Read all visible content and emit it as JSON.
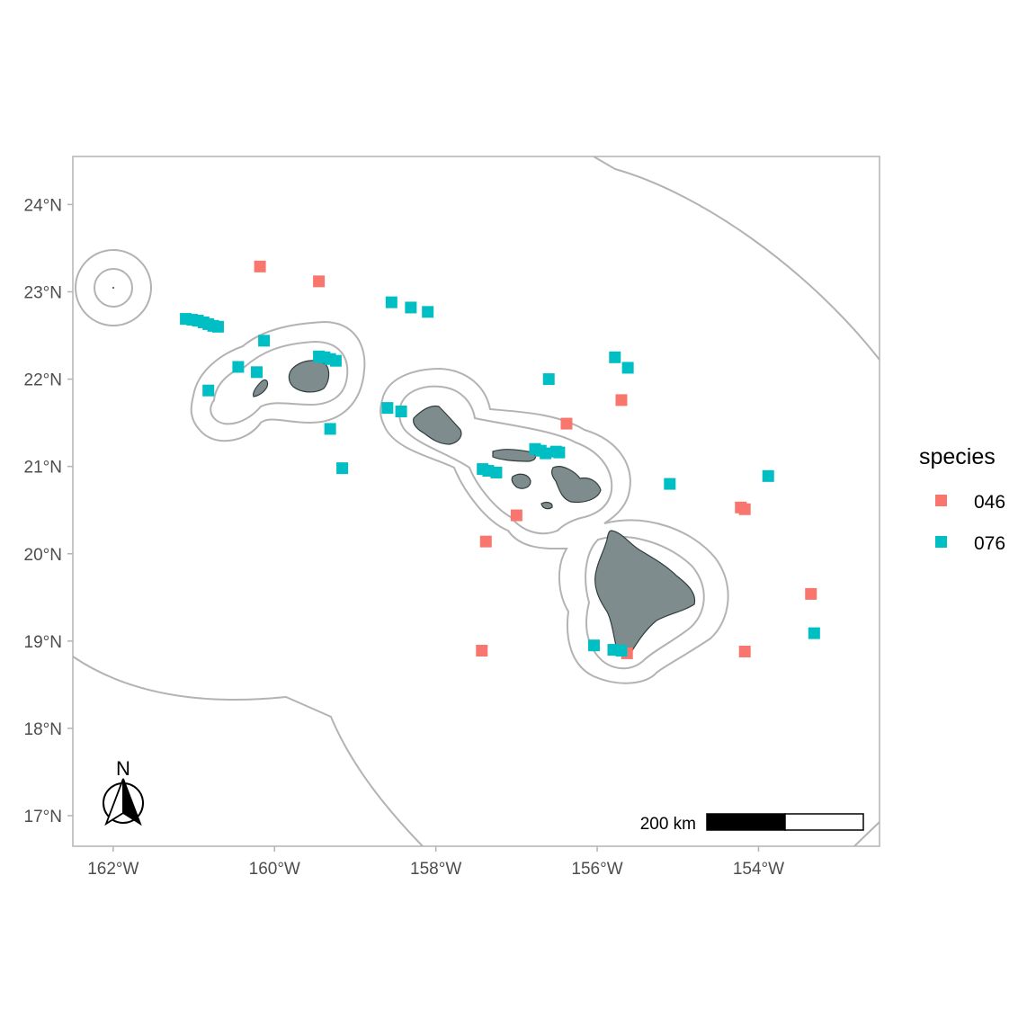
{
  "chart_data": {
    "type": "scatter",
    "subtype": "map",
    "region": "Hawaiian Islands",
    "xlim": [
      -162.5,
      -152.5
    ],
    "ylim": [
      16.65,
      24.55
    ],
    "x_ticks": [
      {
        "value": -162,
        "label": "162°W"
      },
      {
        "value": -160,
        "label": "160°W"
      },
      {
        "value": -158,
        "label": "158°W"
      },
      {
        "value": -156,
        "label": "156°W"
      },
      {
        "value": -154,
        "label": "154°W"
      }
    ],
    "y_ticks": [
      {
        "value": 17,
        "label": "17°N"
      },
      {
        "value": 18,
        "label": "18°N"
      },
      {
        "value": 19,
        "label": "19°N"
      },
      {
        "value": 20,
        "label": "20°N"
      },
      {
        "value": 21,
        "label": "21°N"
      },
      {
        "value": 22,
        "label": "22°N"
      },
      {
        "value": 23,
        "label": "23°N"
      },
      {
        "value": 24,
        "label": "24°N"
      }
    ],
    "legend": {
      "title": "species",
      "position": "right",
      "entries": [
        {
          "label": "046",
          "color": "#F8766D"
        },
        {
          "label": "076",
          "color": "#00BFC4"
        }
      ]
    },
    "series": [
      {
        "name": "046",
        "color": "#F8766D",
        "points": [
          [
            -160.18,
            23.29
          ],
          [
            -159.45,
            23.12
          ],
          [
            -156.38,
            21.49
          ],
          [
            -155.7,
            21.76
          ],
          [
            -157.0,
            20.44
          ],
          [
            -157.38,
            20.14
          ],
          [
            -154.22,
            20.53
          ],
          [
            -154.17,
            20.51
          ],
          [
            -153.35,
            19.54
          ],
          [
            -157.43,
            18.89
          ],
          [
            -155.63,
            18.86
          ],
          [
            -154.17,
            18.88
          ]
        ]
      },
      {
        "name": "076",
        "color": "#00BFC4",
        "points": [
          [
            -161.1,
            22.69
          ],
          [
            -161.02,
            22.68
          ],
          [
            -160.95,
            22.67
          ],
          [
            -160.88,
            22.65
          ],
          [
            -160.82,
            22.63
          ],
          [
            -160.76,
            22.61
          ],
          [
            -160.7,
            22.6
          ],
          [
            -160.13,
            22.44
          ],
          [
            -160.45,
            22.14
          ],
          [
            -160.22,
            22.08
          ],
          [
            -160.82,
            21.87
          ],
          [
            -159.45,
            22.26
          ],
          [
            -159.38,
            22.25
          ],
          [
            -159.31,
            22.23
          ],
          [
            -159.24,
            22.21
          ],
          [
            -159.31,
            21.43
          ],
          [
            -159.16,
            20.98
          ],
          [
            -158.55,
            22.88
          ],
          [
            -158.31,
            22.82
          ],
          [
            -158.1,
            22.77
          ],
          [
            -158.6,
            21.67
          ],
          [
            -158.43,
            21.63
          ],
          [
            -157.42,
            20.97
          ],
          [
            -157.35,
            20.95
          ],
          [
            -157.25,
            20.93
          ],
          [
            -156.77,
            21.2
          ],
          [
            -156.7,
            21.18
          ],
          [
            -156.64,
            21.15
          ],
          [
            -156.51,
            21.17
          ],
          [
            -156.47,
            21.16
          ],
          [
            -156.6,
            22.0
          ],
          [
            -155.78,
            22.25
          ],
          [
            -155.62,
            22.13
          ],
          [
            -155.1,
            20.8
          ],
          [
            -153.88,
            20.89
          ],
          [
            -153.31,
            19.09
          ],
          [
            -156.04,
            18.95
          ],
          [
            -155.8,
            18.9
          ],
          [
            -155.7,
            18.89
          ]
        ]
      }
    ],
    "basemap": {
      "islands_fill": "#7f8c8d",
      "islands_stroke": "#2f3d3d",
      "boundary_stroke": "#b3b3b3",
      "panel_border": "#b3b3b3"
    },
    "scale_bar": {
      "label": "200 km"
    },
    "north_arrow": {
      "label": "N"
    }
  }
}
